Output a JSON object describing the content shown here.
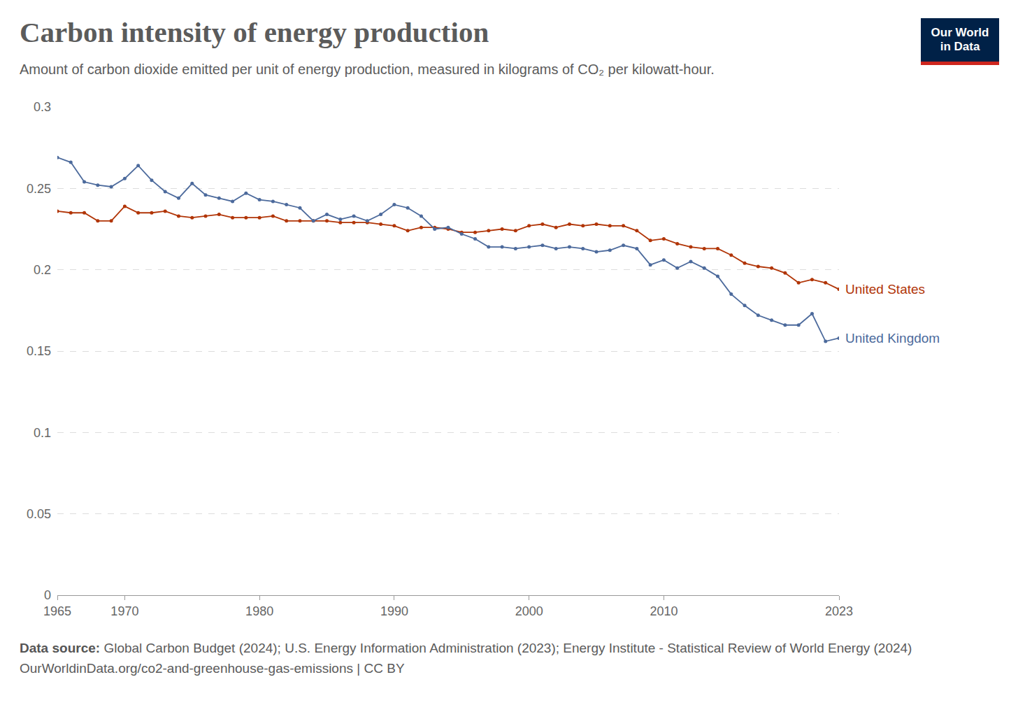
{
  "chart_data": {
    "type": "line",
    "title": "Carbon intensity of energy production",
    "subtitle": "Amount of carbon dioxide emitted per unit of energy production, measured in kilograms of CO₂ per kilowatt-hour.",
    "source_label": "Data source:",
    "source": "Global Carbon Budget (2024); U.S. Energy Information Administration (2023); Energy Institute - Statistical Review of World Energy (2024)",
    "url_line": "OurWorldinData.org/co2-and-greenhouse-gas-emissions | CC BY",
    "logo": [
      "Our World",
      "in Data"
    ],
    "x": [
      1965,
      1966,
      1967,
      1968,
      1969,
      1970,
      1971,
      1972,
      1973,
      1974,
      1975,
      1976,
      1977,
      1978,
      1979,
      1980,
      1981,
      1982,
      1983,
      1984,
      1985,
      1986,
      1987,
      1988,
      1989,
      1990,
      1991,
      1992,
      1993,
      1994,
      1995,
      1996,
      1997,
      1998,
      1999,
      2000,
      2001,
      2002,
      2003,
      2004,
      2005,
      2006,
      2007,
      2008,
      2009,
      2010,
      2011,
      2012,
      2013,
      2014,
      2015,
      2016,
      2017,
      2018,
      2019,
      2020,
      2021,
      2022,
      2023
    ],
    "series": [
      {
        "name": "United States",
        "color": "#b13507",
        "values": [
          0.236,
          0.235,
          0.235,
          0.23,
          0.23,
          0.239,
          0.235,
          0.235,
          0.236,
          0.233,
          0.232,
          0.233,
          0.234,
          0.232,
          0.232,
          0.232,
          0.233,
          0.23,
          0.23,
          0.23,
          0.23,
          0.229,
          0.229,
          0.229,
          0.228,
          0.227,
          0.224,
          0.226,
          0.226,
          0.225,
          0.223,
          0.223,
          0.224,
          0.225,
          0.224,
          0.227,
          0.228,
          0.226,
          0.228,
          0.227,
          0.228,
          0.227,
          0.227,
          0.224,
          0.218,
          0.219,
          0.216,
          0.214,
          0.213,
          0.213,
          0.209,
          0.204,
          0.202,
          0.201,
          0.198,
          0.192,
          0.194,
          0.192,
          0.188
        ]
      },
      {
        "name": "United Kingdom",
        "color": "#4c6a9c",
        "values": [
          0.269,
          0.266,
          0.254,
          0.252,
          0.251,
          0.256,
          0.264,
          0.255,
          0.248,
          0.244,
          0.253,
          0.246,
          0.244,
          0.242,
          0.247,
          0.243,
          0.242,
          0.24,
          0.238,
          0.23,
          0.234,
          0.231,
          0.233,
          0.23,
          0.234,
          0.24,
          0.238,
          0.233,
          0.225,
          0.226,
          0.222,
          0.219,
          0.214,
          0.214,
          0.213,
          0.214,
          0.215,
          0.213,
          0.214,
          0.213,
          0.211,
          0.212,
          0.215,
          0.213,
          0.203,
          0.206,
          0.201,
          0.205,
          0.201,
          0.196,
          0.185,
          0.178,
          0.172,
          0.169,
          0.166,
          0.166,
          0.173,
          0.156,
          0.158
        ]
      }
    ],
    "xlim": [
      1965,
      2023
    ],
    "xticks": [
      1965,
      1970,
      1980,
      1990,
      2000,
      2010,
      2023
    ],
    "ylim": [
      0,
      0.3
    ],
    "yticks": [
      0,
      0.05,
      0.1,
      0.15,
      0.2,
      0.25,
      0.3
    ],
    "grid": true,
    "marker": "circle",
    "line_style": "solid"
  }
}
